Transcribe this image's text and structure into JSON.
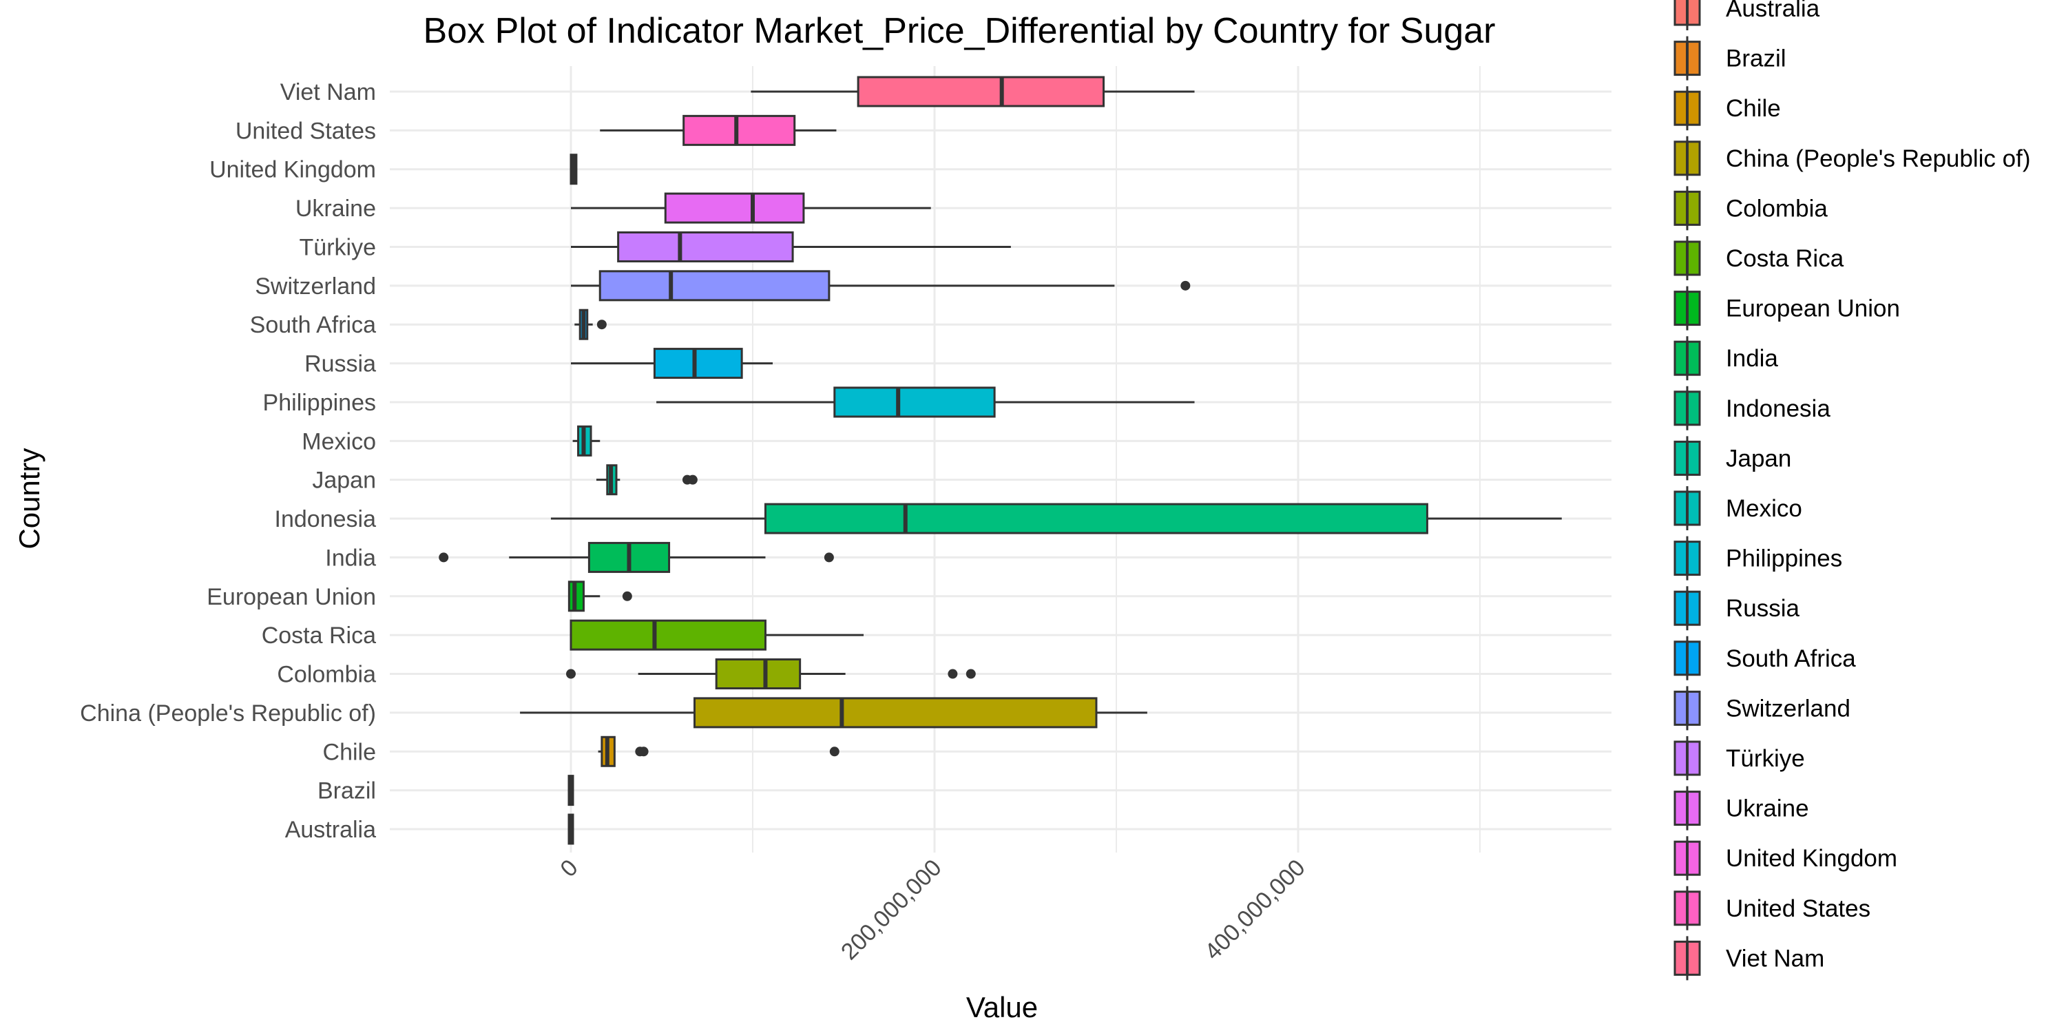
{
  "chart_data": {
    "type": "box",
    "title": "Box Plot of Indicator Market_Price_Differential by Country for Sugar",
    "xlabel": "Value",
    "ylabel": "Country",
    "xlim": [
      -100000000,
      570000000
    ],
    "x_ticks": [
      0,
      200000000,
      400000000
    ],
    "x_tick_labels": [
      "0",
      "200,000,000",
      "400,000,000"
    ],
    "grid": true,
    "legend_position": "right",
    "categories": [
      "Australia",
      "Brazil",
      "Chile",
      "China (People's Republic of)",
      "Colombia",
      "Costa Rica",
      "European Union",
      "India",
      "Indonesia",
      "Japan",
      "Mexico",
      "Philippines",
      "Russia",
      "South Africa",
      "Switzerland",
      "Türkiye",
      "Ukraine",
      "United Kingdom",
      "United States",
      "Viet Nam"
    ],
    "colors": [
      "#F8766D",
      "#E7851E",
      "#D09400",
      "#B2A100",
      "#8EAB00",
      "#5EB300",
      "#00B81F",
      "#00BC59",
      "#00BF7D",
      "#00C09C",
      "#00BEB7",
      "#00BACE",
      "#00B2E3",
      "#00A5F4",
      "#8B93FF",
      "#C77CFF",
      "#E76BF3",
      "#F564E3",
      "#FF61C3",
      "#FF6C90"
    ],
    "boxes": [
      {
        "country": "Australia",
        "min": -500000,
        "q1": -300000,
        "median": 0,
        "q3": 300000,
        "max": 500000,
        "outliers": []
      },
      {
        "country": "Brazil",
        "min": -500000,
        "q1": -300000,
        "median": 0,
        "q3": 300000,
        "max": 500000,
        "outliers": []
      },
      {
        "country": "Chile",
        "min": 15000000,
        "q1": 17000000,
        "median": 20000000,
        "q3": 24000000,
        "max": 24000000,
        "outliers": [
          38000000,
          40000000,
          145000000
        ]
      },
      {
        "country": "China (People's Republic of)",
        "min": -28000000,
        "q1": 68000000,
        "median": 149000000,
        "q3": 289000000,
        "max": 317000000,
        "outliers": []
      },
      {
        "country": "Colombia",
        "min": 37000000,
        "q1": 80000000,
        "median": 107000000,
        "q3": 126000000,
        "max": 151000000,
        "outliers": [
          0,
          210000000,
          220000000
        ]
      },
      {
        "country": "Costa Rica",
        "min": 0,
        "q1": 0,
        "median": 46000000,
        "q3": 107000000,
        "max": 161000000,
        "outliers": []
      },
      {
        "country": "European Union",
        "min": -1000000,
        "q1": -1000000,
        "median": 2000000,
        "q3": 7000000,
        "max": 16000000,
        "outliers": [
          31000000
        ]
      },
      {
        "country": "India",
        "min": -34000000,
        "q1": 10000000,
        "median": 32000000,
        "q3": 54000000,
        "max": 107000000,
        "outliers": [
          -70000000,
          142000000
        ]
      },
      {
        "country": "Indonesia",
        "min": -11000000,
        "q1": 107000000,
        "median": 184000000,
        "q3": 471000000,
        "max": 545000000,
        "outliers": []
      },
      {
        "country": "Japan",
        "min": 14000000,
        "q1": 20000000,
        "median": 22000000,
        "q3": 25000000,
        "max": 27000000,
        "outliers": [
          64000000,
          67000000
        ]
      },
      {
        "country": "Mexico",
        "min": 1000000,
        "q1": 4000000,
        "median": 7000000,
        "q3": 11000000,
        "max": 16000000,
        "outliers": []
      },
      {
        "country": "Philippines",
        "min": 47000000,
        "q1": 145000000,
        "median": 180000000,
        "q3": 233000000,
        "max": 343000000,
        "outliers": []
      },
      {
        "country": "Russia",
        "min": 0,
        "q1": 46000000,
        "median": 68000000,
        "q3": 94000000,
        "max": 111000000,
        "outliers": []
      },
      {
        "country": "South Africa",
        "min": 2000000,
        "q1": 5000000,
        "median": 7000000,
        "q3": 9000000,
        "max": 12000000,
        "outliers": [
          17000000
        ]
      },
      {
        "country": "Switzerland",
        "min": 0,
        "q1": 16000000,
        "median": 55000000,
        "q3": 142000000,
        "max": 299000000,
        "outliers": [
          338000000
        ]
      },
      {
        "country": "Türkiye",
        "min": 0,
        "q1": 26000000,
        "median": 60000000,
        "q3": 122000000,
        "max": 242000000,
        "outliers": []
      },
      {
        "country": "Ukraine",
        "min": 0,
        "q1": 52000000,
        "median": 100000000,
        "q3": 128000000,
        "max": 198000000,
        "outliers": []
      },
      {
        "country": "United Kingdom",
        "min": 0,
        "q1": 0,
        "median": 1500000,
        "q3": 3000000,
        "max": 3000000,
        "outliers": []
      },
      {
        "country": "United States",
        "min": 16000000,
        "q1": 62000000,
        "median": 91000000,
        "q3": 123000000,
        "max": 146000000,
        "outliers": []
      },
      {
        "country": "Viet Nam",
        "min": 99000000,
        "q1": 158000000,
        "median": 237000000,
        "q3": 293000000,
        "max": 343000000,
        "outliers": []
      }
    ]
  }
}
